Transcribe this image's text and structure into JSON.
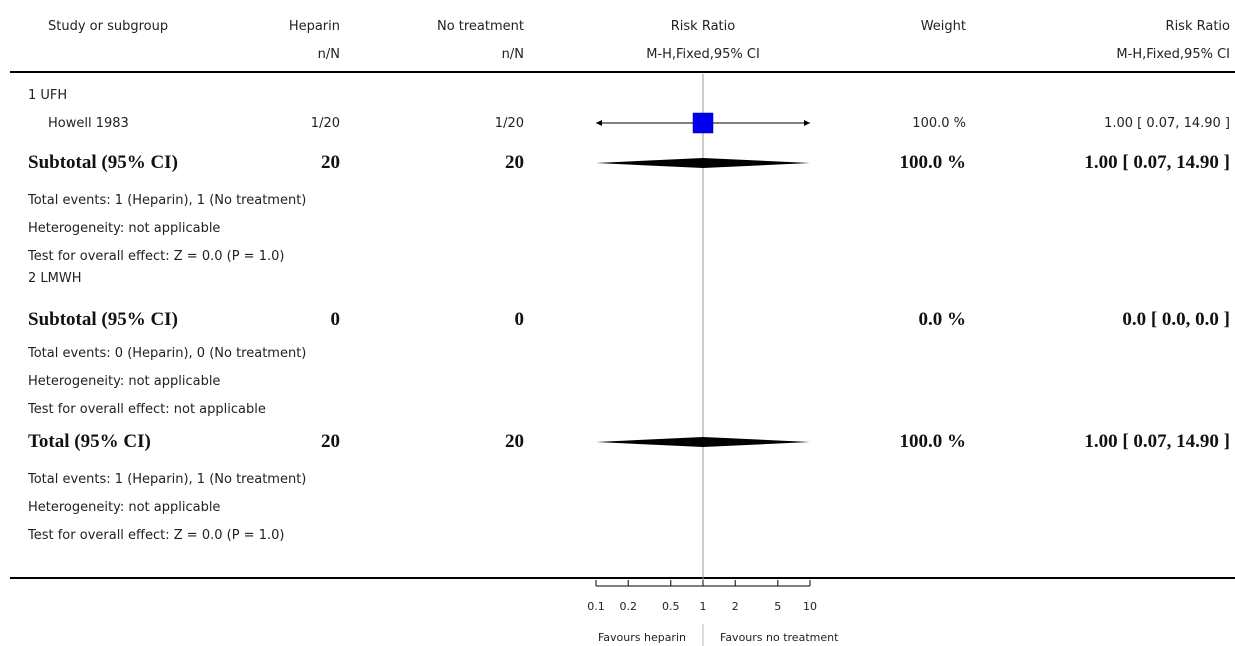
{
  "header": {
    "col_study": "Study or subgroup",
    "col_heparin": "Heparin",
    "col_heparin_sub": "n/N",
    "col_notreat": "No treatment",
    "col_notreat_sub": "n/N",
    "col_rr": "Risk Ratio",
    "col_rr_sub": "M-H,Fixed,95% CI",
    "col_weight": "Weight",
    "col_rr2": "Risk Ratio",
    "col_rr2_sub": "M-H,Fixed,95% CI"
  },
  "group1": {
    "label": "1 UFH",
    "study": {
      "name": "Howell 1983",
      "heparin": "1/20",
      "notreat": "1/20",
      "weight": "100.0 %",
      "ci": "1.00 [ 0.07, 14.90 ]"
    },
    "subtotal": {
      "label": "Subtotal (95% CI)",
      "heparin": "20",
      "notreat": "20",
      "weight": "100.0 %",
      "ci": "1.00 [ 0.07, 14.90 ]"
    },
    "events": "Total events: 1 (Heparin), 1 (No treatment)",
    "heterogeneity": "Heterogeneity: not applicable",
    "effect": "Test for overall effect: Z = 0.0 (P = 1.0)"
  },
  "group2": {
    "label": "2 LMWH",
    "subtotal": {
      "label": "Subtotal (95% CI)",
      "heparin": "0",
      "notreat": "0",
      "weight": "0.0 %",
      "ci": "0.0 [ 0.0, 0.0 ]"
    },
    "events": "Total events: 0 (Heparin), 0 (No treatment)",
    "heterogeneity": "Heterogeneity: not applicable",
    "effect": "Test for overall effect: not applicable"
  },
  "total": {
    "label": "Total (95% CI)",
    "heparin": "20",
    "notreat": "20",
    "weight": "100.0 %",
    "ci": "1.00 [ 0.07, 14.90 ]",
    "events": "Total events: 1 (Heparin), 1 (No treatment)",
    "heterogeneity": "Heterogeneity: not applicable",
    "effect": "Test for overall effect: Z = 0.0 (P = 1.0)"
  },
  "axis": {
    "favours_left": "Favours heparin",
    "favours_right": "Favours no treatment"
  },
  "chart_data": {
    "type": "forest",
    "scale": "log",
    "xlim": [
      0.1,
      10
    ],
    "reference": 1,
    "ticks": [
      {
        "value": 0.1,
        "label": "0.1"
      },
      {
        "value": 0.2,
        "label": "0.2"
      },
      {
        "value": 0.5,
        "label": "0.5"
      },
      {
        "value": 1,
        "label": "1"
      },
      {
        "value": 2,
        "label": "2"
      },
      {
        "value": 5,
        "label": "5"
      },
      {
        "value": 10,
        "label": "10"
      }
    ],
    "studies": [
      {
        "name": "Howell 1983",
        "rr": 1.0,
        "lo": 0.07,
        "hi": 14.9,
        "weight": 100.0
      }
    ],
    "diamonds": [
      {
        "name": "Subtotal UFH",
        "rr": 1.0,
        "lo": 0.07,
        "hi": 14.9
      },
      {
        "name": "Total",
        "rr": 1.0,
        "lo": 0.07,
        "hi": 14.9
      }
    ],
    "colors": {
      "square": "#0000ee",
      "line": "#000000",
      "reference": "#999999"
    }
  }
}
